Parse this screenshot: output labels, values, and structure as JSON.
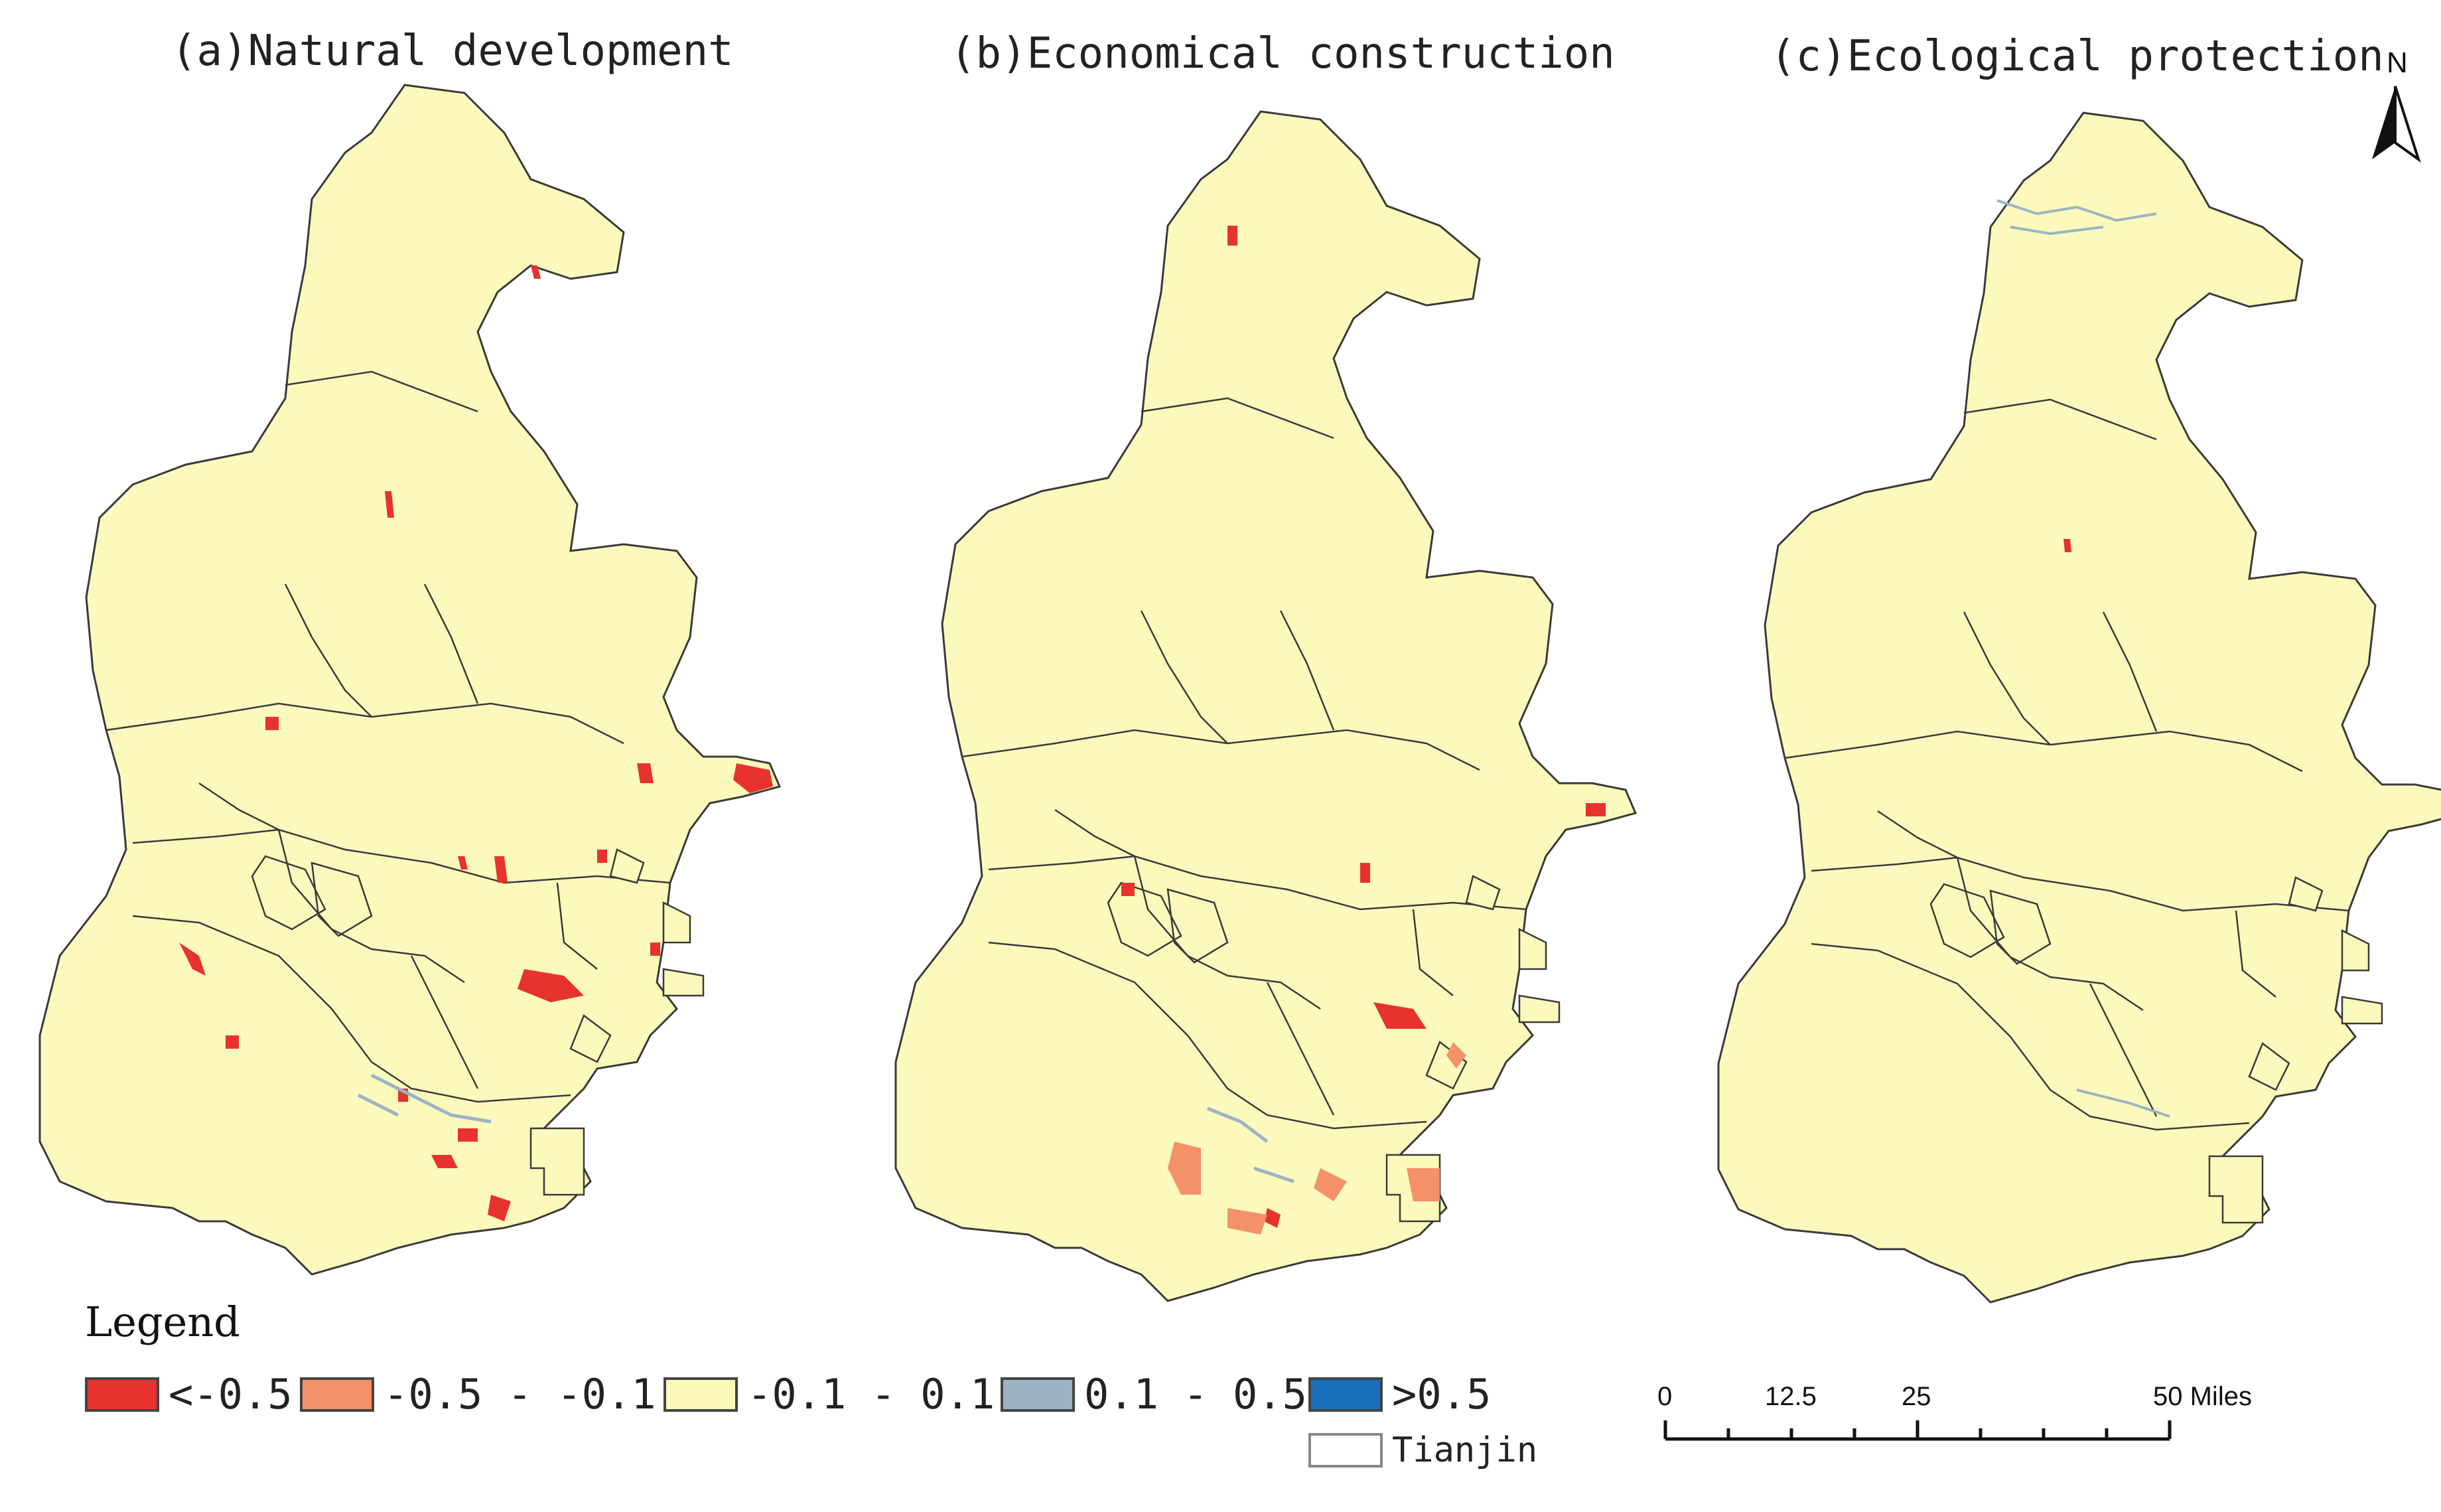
{
  "panels": [
    {
      "title": "(a)Natural development"
    },
    {
      "title": "(b)Economical construction"
    },
    {
      "title": "(c)Ecological protection"
    }
  ],
  "colors": {
    "background_fill": "#fbfabc",
    "boundary": "#3a3a3a",
    "class_lt_neg05": "#e8322d",
    "class_neg05_neg01": "#f5916a",
    "class_neg01_01": "#fbfabc",
    "class_01_05": "#9cb3c4",
    "class_gt_05": "#1a6fbd"
  },
  "legend": {
    "title": "Legend",
    "items": [
      {
        "label": "<-0.5",
        "color": "#e8322d"
      },
      {
        "label": "-0.5 - -0.1",
        "color": "#f5916a"
      },
      {
        "label": "-0.1 - 0.1",
        "color": "#fbfabc"
      },
      {
        "label": "0.1 - 0.5",
        "color": "#9cb3c4"
      },
      {
        "label": ">0.5",
        "color": "#1a6fbd"
      }
    ],
    "boundary_label": "Tianjin"
  },
  "scale_bar": {
    "ticks": [
      "0",
      "12.5",
      "25",
      "50 Miles"
    ]
  },
  "north_arrow": {
    "label": "N"
  }
}
